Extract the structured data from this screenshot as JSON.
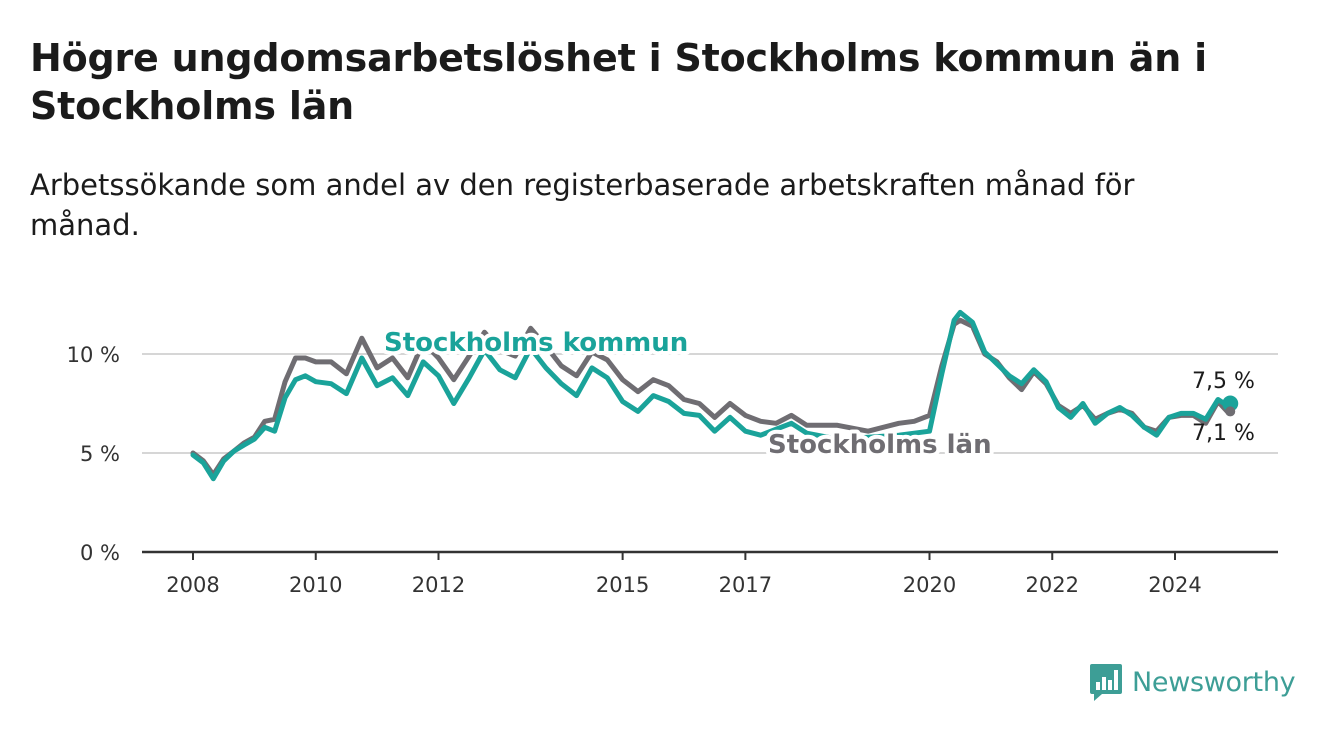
{
  "chart_data": {
    "type": "line",
    "title": "Högre ungdomsarbetslöshet i Stockholms kommun än i Stockholms län",
    "subtitle": "Arbetssökande som andel av den registerbaserade arbetskraften månad för månad.",
    "xlabel": "",
    "ylabel": "",
    "x_ticks": [
      2008,
      2010,
      2012,
      2015,
      2017,
      2020,
      2022,
      2024
    ],
    "y_ticks": [
      0,
      5,
      10
    ],
    "y_tick_labels": [
      "0 %",
      "5 %",
      "10 %"
    ],
    "ylim": [
      0,
      12.5
    ],
    "grid": true,
    "series": [
      {
        "name": "Stockholms kommun",
        "color": "#1aa39a",
        "end_label": "7,5 %",
        "points": [
          [
            2008.0,
            4.9
          ],
          [
            2008.17,
            4.5
          ],
          [
            2008.33,
            3.7
          ],
          [
            2008.5,
            4.6
          ],
          [
            2008.67,
            5.1
          ],
          [
            2008.83,
            5.4
          ],
          [
            2009.0,
            5.7
          ],
          [
            2009.17,
            6.3
          ],
          [
            2009.33,
            6.1
          ],
          [
            2009.5,
            7.8
          ],
          [
            2009.67,
            8.7
          ],
          [
            2009.83,
            8.9
          ],
          [
            2010.0,
            8.6
          ],
          [
            2010.25,
            8.5
          ],
          [
            2010.5,
            8.0
          ],
          [
            2010.75,
            9.8
          ],
          [
            2011.0,
            8.4
          ],
          [
            2011.25,
            8.8
          ],
          [
            2011.5,
            7.9
          ],
          [
            2011.75,
            9.6
          ],
          [
            2012.0,
            8.9
          ],
          [
            2012.25,
            7.5
          ],
          [
            2012.5,
            8.8
          ],
          [
            2012.75,
            10.2
          ],
          [
            2013.0,
            9.2
          ],
          [
            2013.25,
            8.8
          ],
          [
            2013.5,
            10.3
          ],
          [
            2013.75,
            9.3
          ],
          [
            2014.0,
            8.5
          ],
          [
            2014.25,
            7.9
          ],
          [
            2014.5,
            9.3
          ],
          [
            2014.75,
            8.8
          ],
          [
            2015.0,
            7.6
          ],
          [
            2015.25,
            7.1
          ],
          [
            2015.5,
            7.9
          ],
          [
            2015.75,
            7.6
          ],
          [
            2016.0,
            7.0
          ],
          [
            2016.25,
            6.9
          ],
          [
            2016.5,
            6.1
          ],
          [
            2016.75,
            6.8
          ],
          [
            2017.0,
            6.1
          ],
          [
            2017.25,
            5.9
          ],
          [
            2017.5,
            6.2
          ],
          [
            2017.75,
            6.5
          ],
          [
            2018.0,
            6.0
          ],
          [
            2018.5,
            5.7
          ],
          [
            2019.0,
            5.8
          ],
          [
            2019.5,
            5.9
          ],
          [
            2019.75,
            6.0
          ],
          [
            2020.0,
            6.1
          ],
          [
            2020.2,
            9.0
          ],
          [
            2020.4,
            11.7
          ],
          [
            2020.5,
            12.1
          ],
          [
            2020.7,
            11.6
          ],
          [
            2020.9,
            10.1
          ],
          [
            2021.1,
            9.5
          ],
          [
            2021.3,
            8.9
          ],
          [
            2021.5,
            8.5
          ],
          [
            2021.7,
            9.2
          ],
          [
            2021.9,
            8.6
          ],
          [
            2022.1,
            7.3
          ],
          [
            2022.3,
            6.8
          ],
          [
            2022.5,
            7.5
          ],
          [
            2022.7,
            6.5
          ],
          [
            2022.9,
            7.0
          ],
          [
            2023.1,
            7.3
          ],
          [
            2023.3,
            6.9
          ],
          [
            2023.5,
            6.3
          ],
          [
            2023.7,
            5.9
          ],
          [
            2023.9,
            6.8
          ],
          [
            2024.1,
            7.0
          ],
          [
            2024.3,
            7.0
          ],
          [
            2024.5,
            6.7
          ],
          [
            2024.7,
            7.7
          ],
          [
            2024.85,
            7.4
          ],
          [
            2024.9,
            7.5
          ]
        ]
      },
      {
        "name": "Stockholms län",
        "color": "#6f6d72",
        "end_label": "7,1 %",
        "points": [
          [
            2008.0,
            5.0
          ],
          [
            2008.17,
            4.6
          ],
          [
            2008.33,
            3.9
          ],
          [
            2008.5,
            4.7
          ],
          [
            2008.67,
            5.1
          ],
          [
            2008.83,
            5.5
          ],
          [
            2009.0,
            5.8
          ],
          [
            2009.17,
            6.6
          ],
          [
            2009.33,
            6.7
          ],
          [
            2009.5,
            8.6
          ],
          [
            2009.67,
            9.8
          ],
          [
            2009.83,
            9.8
          ],
          [
            2010.0,
            9.6
          ],
          [
            2010.25,
            9.6
          ],
          [
            2010.5,
            9.0
          ],
          [
            2010.75,
            10.8
          ],
          [
            2011.0,
            9.3
          ],
          [
            2011.25,
            9.8
          ],
          [
            2011.5,
            8.8
          ],
          [
            2011.75,
            10.6
          ],
          [
            2012.0,
            9.8
          ],
          [
            2012.25,
            8.7
          ],
          [
            2012.5,
            9.9
          ],
          [
            2012.75,
            11.1
          ],
          [
            2013.0,
            10.2
          ],
          [
            2013.25,
            9.9
          ],
          [
            2013.5,
            11.3
          ],
          [
            2013.75,
            10.4
          ],
          [
            2014.0,
            9.4
          ],
          [
            2014.25,
            8.9
          ],
          [
            2014.5,
            10.1
          ],
          [
            2014.75,
            9.7
          ],
          [
            2015.0,
            8.7
          ],
          [
            2015.25,
            8.1
          ],
          [
            2015.5,
            8.7
          ],
          [
            2015.75,
            8.4
          ],
          [
            2016.0,
            7.7
          ],
          [
            2016.25,
            7.5
          ],
          [
            2016.5,
            6.8
          ],
          [
            2016.75,
            7.5
          ],
          [
            2017.0,
            6.9
          ],
          [
            2017.25,
            6.6
          ],
          [
            2017.5,
            6.5
          ],
          [
            2017.75,
            6.9
          ],
          [
            2018.0,
            6.4
          ],
          [
            2018.5,
            6.4
          ],
          [
            2019.0,
            6.1
          ],
          [
            2019.5,
            6.5
          ],
          [
            2019.75,
            6.6
          ],
          [
            2020.0,
            6.9
          ],
          [
            2020.2,
            9.4
          ],
          [
            2020.4,
            11.5
          ],
          [
            2020.5,
            11.7
          ],
          [
            2020.7,
            11.4
          ],
          [
            2020.9,
            10.0
          ],
          [
            2021.1,
            9.6
          ],
          [
            2021.3,
            8.8
          ],
          [
            2021.5,
            8.2
          ],
          [
            2021.7,
            9.1
          ],
          [
            2021.9,
            8.5
          ],
          [
            2022.1,
            7.4
          ],
          [
            2022.3,
            7.0
          ],
          [
            2022.5,
            7.4
          ],
          [
            2022.7,
            6.7
          ],
          [
            2022.9,
            7.0
          ],
          [
            2023.1,
            7.2
          ],
          [
            2023.3,
            7.0
          ],
          [
            2023.5,
            6.3
          ],
          [
            2023.7,
            6.1
          ],
          [
            2023.9,
            6.8
          ],
          [
            2024.1,
            6.9
          ],
          [
            2024.3,
            6.9
          ],
          [
            2024.5,
            6.5
          ],
          [
            2024.7,
            7.6
          ],
          [
            2024.85,
            7.1
          ],
          [
            2024.9,
            7.1
          ]
        ]
      }
    ]
  },
  "brand": {
    "name": "Newsworthy",
    "color": "#3d9e96"
  }
}
